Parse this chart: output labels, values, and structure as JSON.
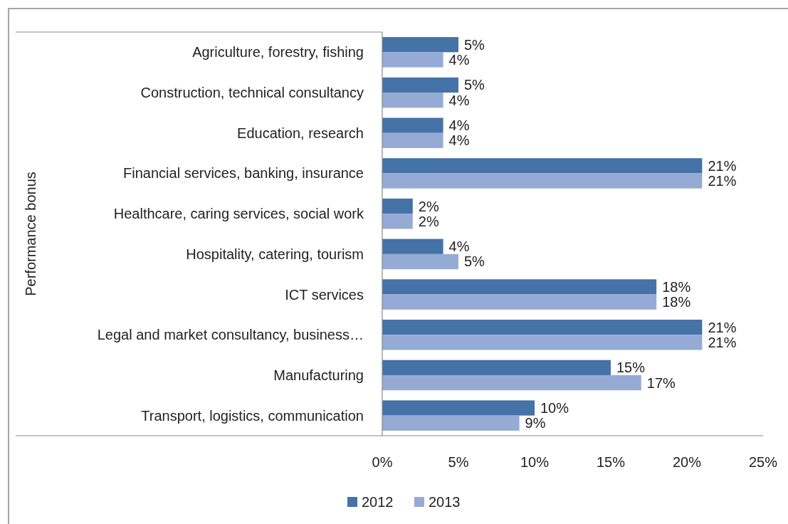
{
  "chart_data": {
    "type": "bar",
    "orientation": "horizontal",
    "ylabel": "Performance bonus",
    "categories": [
      "Agriculture, forestry, fishing",
      "Construction, technical consultancy",
      "Education, research",
      "Financial services, banking, insurance",
      "Healthcare, caring services, social work",
      "Hospitality, catering, tourism",
      "ICT services",
      "Legal and market consultancy, business…",
      "Manufacturing",
      "Transport, logistics, communication"
    ],
    "series": [
      {
        "name": "2012",
        "color": "#4572a7",
        "values": [
          5,
          5,
          4,
          21,
          2,
          4,
          18,
          21,
          15,
          10
        ],
        "value_labels": [
          "5%",
          "5%",
          "4%",
          "21%",
          "2%",
          "4%",
          "18%",
          "21%",
          "15%",
          "10%"
        ]
      },
      {
        "name": "2013",
        "color": "#95abd5",
        "values": [
          4,
          4,
          4,
          21,
          2,
          5,
          18,
          21,
          17,
          9
        ],
        "value_labels": [
          "4%",
          "4%",
          "4%",
          "21%",
          "2%",
          "5%",
          "18%",
          "21%",
          "17%",
          "9%"
        ]
      }
    ],
    "xlim": [
      0,
      25
    ],
    "xticks": [
      {
        "value": 0,
        "label": "0%"
      },
      {
        "value": 5,
        "label": "5%"
      },
      {
        "value": 10,
        "label": "10%"
      },
      {
        "value": 15,
        "label": "15%"
      },
      {
        "value": 20,
        "label": "20%"
      },
      {
        "value": 25,
        "label": "25%"
      }
    ],
    "grid": false,
    "legend": "bottom"
  }
}
